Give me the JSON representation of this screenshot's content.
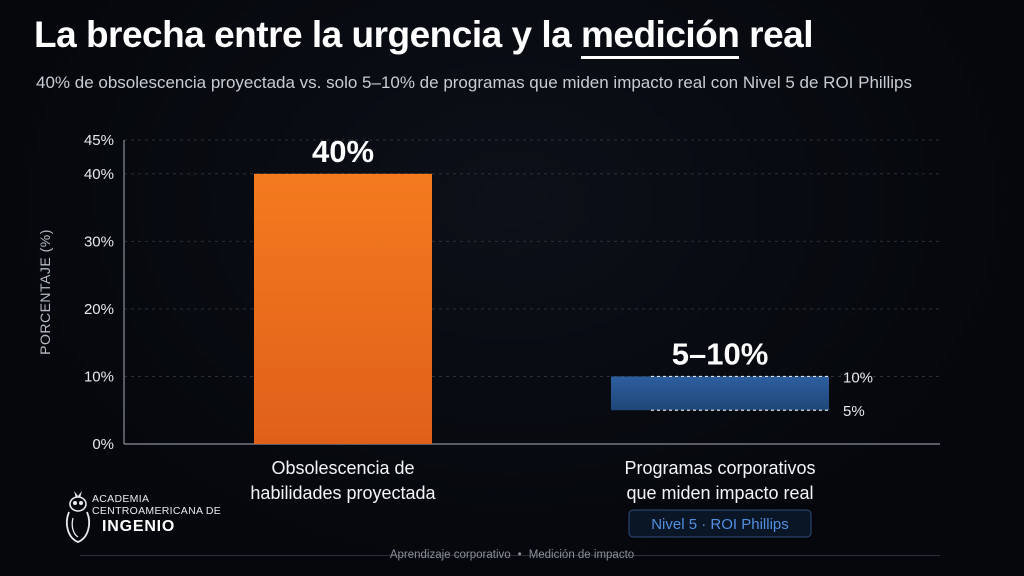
{
  "title": {
    "prefix": "La brecha entre la urgencia y la ",
    "highlight": "medición",
    "suffix": " real"
  },
  "subtitle": "40% de obsolescencia proyectada vs. solo 5–10% de programas que miden impacto real con Nivel 5 de ROI Phillips",
  "chart_data": {
    "type": "bar",
    "categories": [
      [
        "Obsolescencia de",
        "habilidades proyectada"
      ],
      [
        "Programas corporativos",
        "que miden impacto real"
      ]
    ],
    "bars": [
      {
        "low": 0,
        "high": 40,
        "label": "40%",
        "color": "#f47a1f",
        "color_bottom": "#e0601a"
      },
      {
        "low": 5,
        "high": 10,
        "label": "5–10%",
        "color": "#2d5f9e",
        "color_bottom": "#1f4678",
        "range_labels": [
          "10%",
          "5%"
        ]
      }
    ],
    "badge": "Nivel 5 · ROI Phillips",
    "ylabel": "PORCENTAJE (%)",
    "ylim": [
      0,
      45
    ],
    "yticks": [
      0,
      10,
      20,
      30,
      40,
      45
    ],
    "ytick_labels": [
      "0%",
      "10%",
      "20%",
      "30%",
      "40%",
      "45%"
    ],
    "grid": true
  },
  "logo": {
    "line1": "ACADEMIA",
    "line2": "CENTROAMERICANA DE",
    "line3": "INGENIO"
  },
  "footer": {
    "left": "Aprendizaje corporativo",
    "separator": "•",
    "right": "Medición de impacto"
  },
  "colors": {
    "background": "#05070c",
    "grid": "#3a3f48",
    "badge_text": "#4f8fe0",
    "badge_border": "#2f4d78"
  }
}
